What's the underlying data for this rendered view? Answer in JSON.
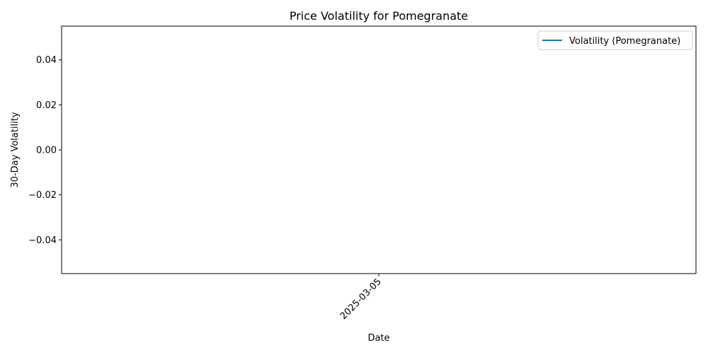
{
  "chart_data": {
    "type": "line",
    "title": "Price Volatility for Pomegranate",
    "xlabel": "Date",
    "ylabel": "30-Day Volatility",
    "x_ticks": [
      "2025-03-05"
    ],
    "y_ticks": [
      "0.04",
      "0.02",
      "0.00",
      "−0.02",
      "−0.04"
    ],
    "ylim": [
      -0.055,
      0.055
    ],
    "grid": false,
    "legend_position": "top-right",
    "series": [
      {
        "name": "Volatility (Pomegranate)",
        "color": "#1f77b4",
        "x": [],
        "values": []
      }
    ]
  }
}
